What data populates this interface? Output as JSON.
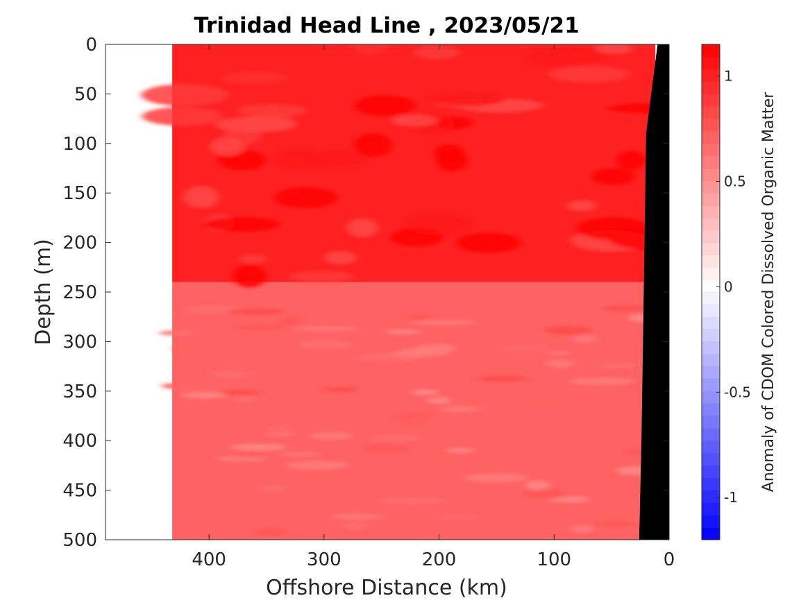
{
  "chart_data": {
    "type": "heatmap",
    "title": "Trinidad Head Line , 2023/05/21",
    "xlabel": "Offshore Distance (km)",
    "ylabel": "Depth (m)",
    "xlim": [
      490,
      0
    ],
    "ylim": [
      0,
      500
    ],
    "x_reversed": true,
    "y_reversed": true,
    "xticks": [
      400,
      300,
      200,
      100,
      0
    ],
    "yticks": [
      0,
      50,
      100,
      150,
      200,
      250,
      300,
      350,
      400,
      450,
      500
    ],
    "grid": false,
    "data_extent_km": [
      432,
      0
    ],
    "bathymetry": [
      [
        10,
        0
      ],
      [
        20,
        90
      ],
      [
        22,
        250
      ],
      [
        24,
        400
      ],
      [
        26,
        500
      ]
    ],
    "bathymetry_color": "#000000",
    "field_description": "Upper 240 m strongly positive (~0.9-1.1); below 240 m banded lighter values (~0.55-0.85).",
    "layers": [
      {
        "depth_range": [
          0,
          240
        ],
        "anomaly": 1.0
      },
      {
        "depth_range": [
          240,
          500
        ],
        "anomaly": 0.7
      }
    ],
    "colorbar": {
      "label": "Anomaly of CDOM Colored Dissolved Organic Matter",
      "range": [
        -1.2,
        1.15
      ],
      "ticks": [
        1,
        0.5,
        0,
        -0.5,
        -1
      ],
      "tick_labels": [
        "1",
        "0.5",
        "0",
        "-0.5",
        "-1"
      ],
      "colormap": "blue-white-red",
      "levels": 40
    },
    "colors": {
      "positive_max": "#ff0000",
      "zero": "#ffffff",
      "negative_max": "#0000ff"
    }
  }
}
